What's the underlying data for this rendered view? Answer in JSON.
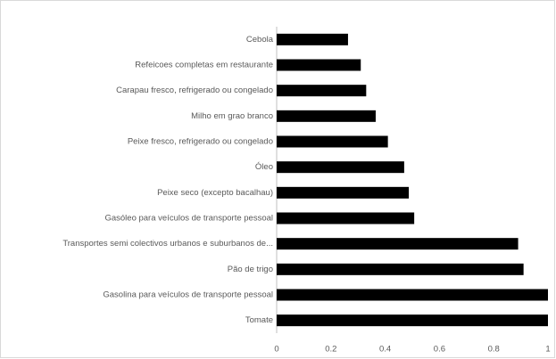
{
  "chart_data": {
    "type": "bar",
    "orientation": "horizontal",
    "categories": [
      "Cebola",
      "Refeicoes completas em restaurante",
      "Carapau fresco, refrigerado ou congelado",
      "Milho em grao branco",
      "Peixe fresco, refrigerado ou congelado",
      "Óleo",
      "Peixe seco (excepto bacalhau)",
      "Gasóleo para veículos de transporte pessoal",
      "Transportes semi colectivos urbanos e suburbanos de...",
      "Pão de trigo",
      "Gasolina para veículos de transporte pessoal",
      "Tomate"
    ],
    "values": [
      0.263,
      0.31,
      0.33,
      0.365,
      0.41,
      0.47,
      0.487,
      0.507,
      0.89,
      0.91,
      1.0,
      1.0
    ],
    "color": "#000000",
    "xlim": [
      0,
      1
    ],
    "xticks": [
      0,
      0.2,
      0.4,
      0.6,
      0.8,
      1
    ],
    "grid": false
  }
}
